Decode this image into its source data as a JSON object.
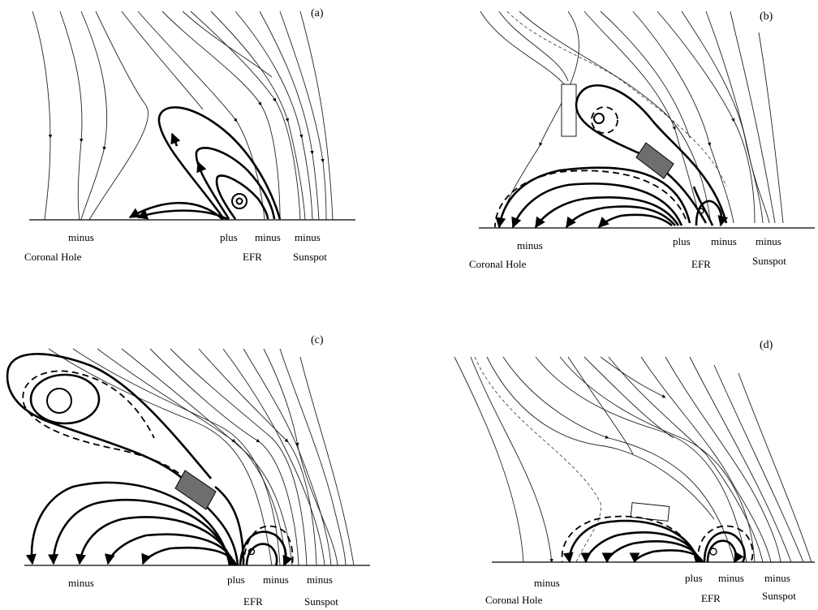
{
  "panels": [
    {
      "id": "a",
      "letter": "(a)",
      "labels": {
        "coronal_minus": "minus",
        "coronal_hole": "Coronal Hole",
        "plus": "plus",
        "efr_minus": "minus",
        "sunspot_minus": "minus",
        "efr": "EFR",
        "sunspot": "Sunspot"
      }
    },
    {
      "id": "b",
      "letter": "(b)",
      "labels": {
        "coronal_minus": "minus",
        "coronal_hole": "Coronal Hole",
        "plus": "plus",
        "efr_minus": "minus",
        "sunspot_minus": "minus",
        "efr": "EFR",
        "sunspot": "Sunspot"
      }
    },
    {
      "id": "c",
      "letter": "(c)",
      "labels": {
        "coronal_minus": "minus",
        "plus": "plus",
        "efr_minus": "minus",
        "sunspot_minus": "minus",
        "efr": "EFR",
        "sunspot": "Sunspot"
      }
    },
    {
      "id": "d",
      "letter": "(d)",
      "labels": {
        "coronal_minus": "minus",
        "coronal_hole": "Coronal Hole",
        "plus": "plus",
        "efr_minus": "minus",
        "sunspot_minus": "minus",
        "efr": "EFR",
        "sunspot": "Sunspot"
      }
    }
  ]
}
